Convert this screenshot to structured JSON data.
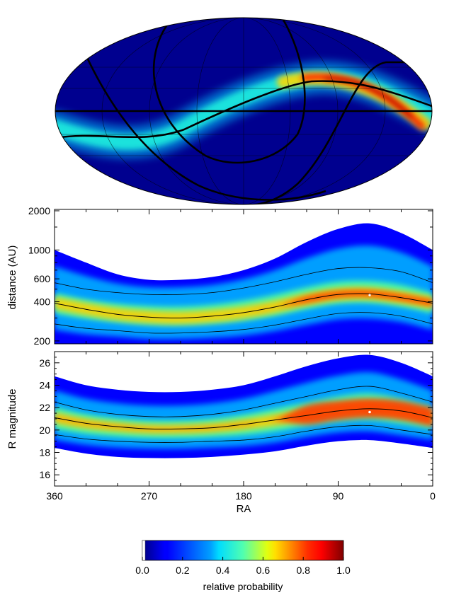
{
  "chart_data": [
    {
      "type": "heatmap",
      "projection": "mollweide",
      "description_of_content": "all-sky map",
      "colormap": "jet",
      "grid": true
    },
    {
      "type": "heatmap",
      "xlabel": "",
      "ylabel": "distance (AU)",
      "y_scale": "log",
      "xlim": [
        360,
        0
      ],
      "ylim": [
        190,
        2050
      ],
      "yticks": [
        200,
        400,
        600,
        1000,
        2000
      ],
      "ytick_labels": [
        "200",
        "400",
        "600",
        "1000",
        "2000"
      ],
      "x": [
        360,
        330,
        300,
        270,
        240,
        210,
        180,
        150,
        120,
        90,
        60,
        30,
        0
      ],
      "center": [
        390,
        350,
        320,
        305,
        300,
        310,
        330,
        365,
        415,
        455,
        460,
        430,
        390
      ],
      "upper": [
        560,
        500,
        470,
        455,
        455,
        470,
        510,
        570,
        650,
        720,
        730,
        680,
        560
      ],
      "lower": [
        270,
        250,
        240,
        230,
        230,
        235,
        245,
        265,
        295,
        325,
        330,
        310,
        270
      ],
      "top_edge": [
        1000,
        800,
        650,
        590,
        590,
        620,
        700,
        860,
        1150,
        1450,
        1600,
        1350,
        1000
      ],
      "peak": {
        "x": 60,
        "y": 450
      }
    },
    {
      "type": "heatmap",
      "xlabel": "RA",
      "ylabel": "R magnitude",
      "xlim": [
        360,
        0
      ],
      "ylim": [
        15,
        27
      ],
      "xticks": [
        360,
        270,
        180,
        90,
        0
      ],
      "xtick_labels": [
        "360",
        "270",
        "180",
        "90",
        "0"
      ],
      "yticks": [
        16,
        18,
        20,
        22,
        24,
        26
      ],
      "ytick_labels": [
        "16",
        "18",
        "20",
        "22",
        "24",
        "26"
      ],
      "x": [
        360,
        330,
        300,
        270,
        240,
        210,
        180,
        150,
        120,
        90,
        60,
        30,
        0
      ],
      "center": [
        21.1,
        20.6,
        20.3,
        20.1,
        20.1,
        20.2,
        20.5,
        20.9,
        21.3,
        21.7,
        21.9,
        21.7,
        21.1
      ],
      "upper": [
        22.5,
        21.8,
        21.4,
        21.2,
        21.2,
        21.4,
        21.8,
        22.4,
        23.0,
        23.6,
        23.9,
        23.3,
        22.5
      ],
      "lower": [
        19.6,
        19.2,
        19.0,
        18.9,
        18.9,
        19.0,
        19.1,
        19.4,
        19.9,
        20.3,
        20.4,
        20.0,
        19.6
      ],
      "top_edge": [
        24.8,
        24.0,
        23.6,
        23.4,
        23.4,
        23.6,
        24.0,
        24.8,
        25.7,
        26.4,
        26.7,
        26.0,
        24.8
      ],
      "bottom_edge": [
        18.4,
        17.9,
        17.6,
        17.5,
        17.5,
        17.6,
        17.8,
        18.1,
        18.6,
        19.0,
        19.1,
        18.8,
        18.4
      ],
      "peak": {
        "x": 60,
        "y": 21.6
      }
    },
    {
      "type": "heatmap",
      "colorbar": true,
      "xlabel": "relative probability",
      "xlim": [
        0.0,
        1.0
      ],
      "xticks": [
        0.0,
        0.2,
        0.4,
        0.6,
        0.8,
        1.0
      ],
      "xtick_labels": [
        "0.0",
        "0.2",
        "0.4",
        "0.6",
        "0.8",
        "1.0"
      ],
      "colormap": "jet"
    }
  ],
  "labels": {
    "dist_ylabel": "distance (AU)",
    "mag_ylabel": "R magnitude",
    "ra_xlabel": "RA",
    "colorbar_label": "relative probability"
  },
  "colors": {
    "background_blue": "#00008f",
    "line": "#000000"
  }
}
